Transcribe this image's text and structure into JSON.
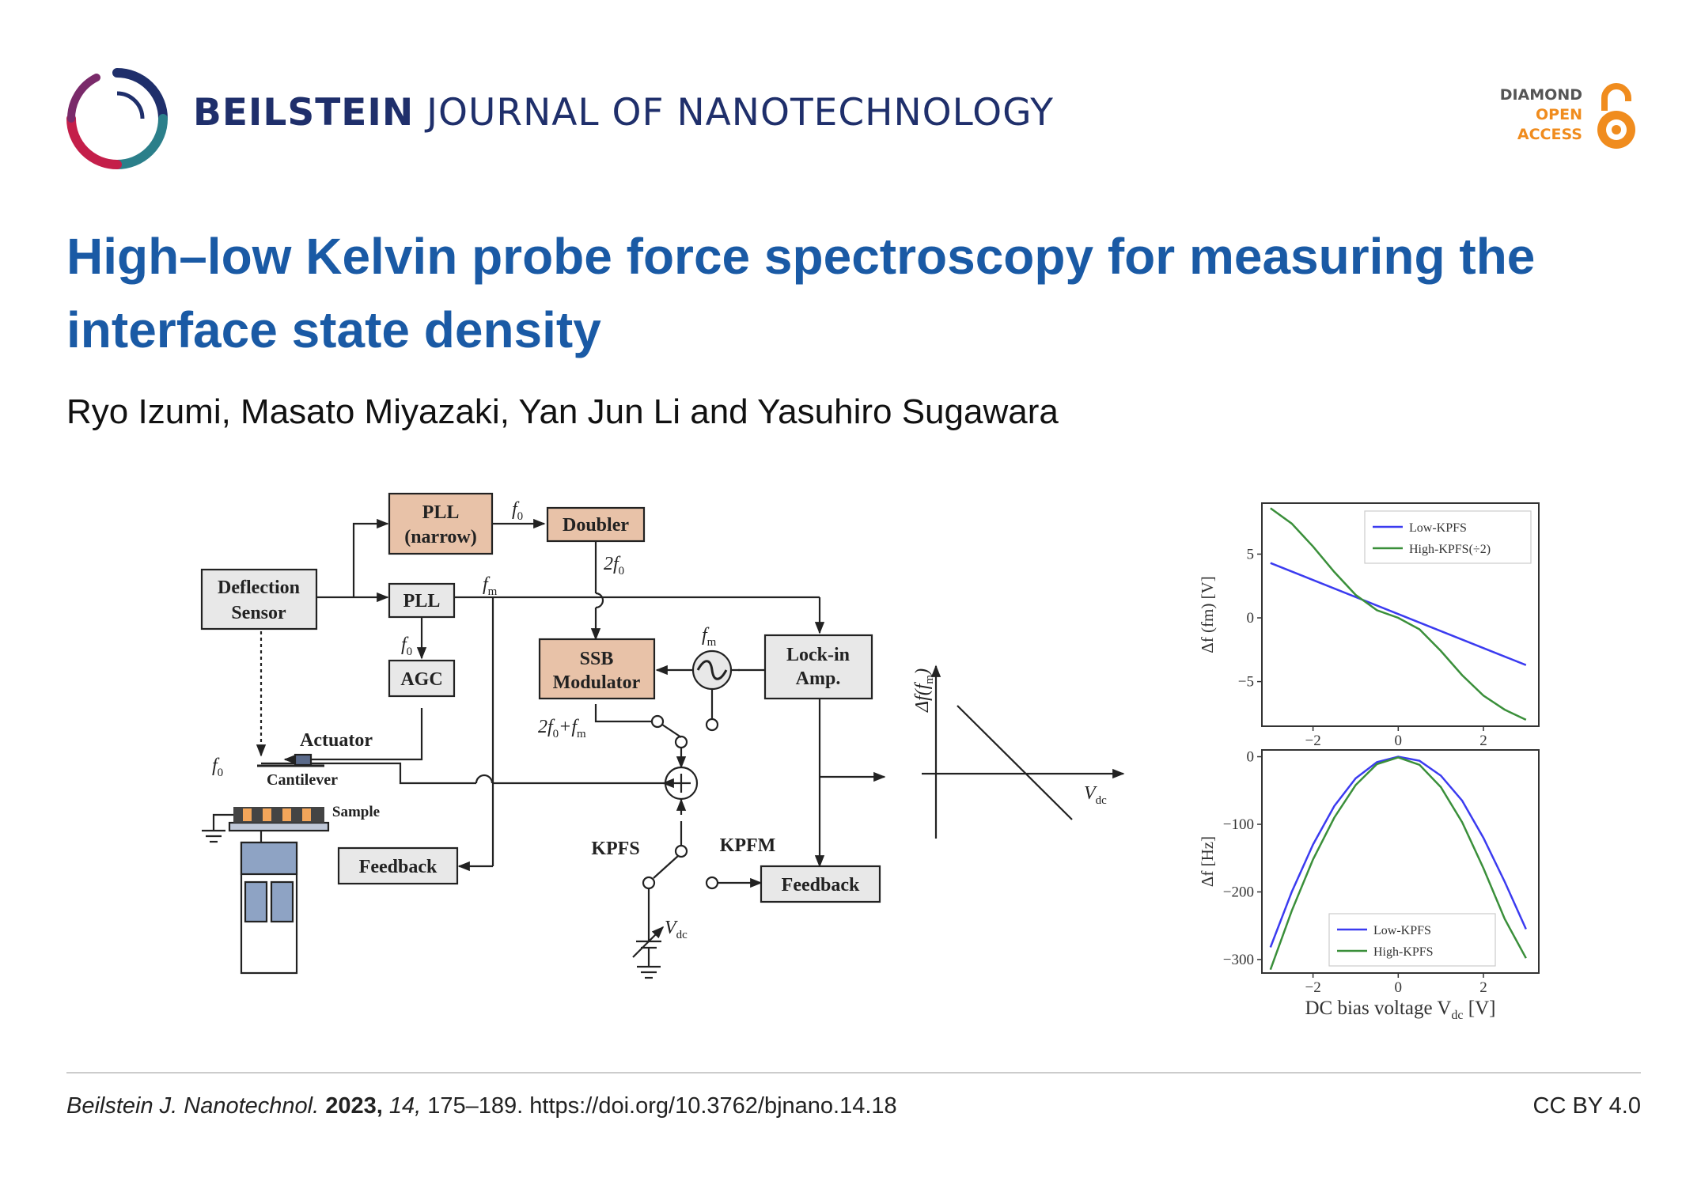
{
  "header": {
    "journal_bold": "BEILSTEIN",
    "journal_rest": "JOURNAL OF NANOTECHNOLOGY",
    "oa_line1": "DIAMOND",
    "oa_line2": "OPEN",
    "oa_line3": "ACCESS"
  },
  "article": {
    "title": "High–low Kelvin probe force spectroscopy for measuring the interface state density",
    "authors": "Ryo Izumi, Masato Miyazaki, Yan Jun Li and Yasuhiro Sugawara"
  },
  "diagram": {
    "pll_narrow_1": "PLL",
    "pll_narrow_2": "(narrow)",
    "doubler": "Doubler",
    "deflection_1": "Deflection",
    "deflection_2": "Sensor",
    "pll": "PLL",
    "agc": "AGC",
    "ssb_1": "SSB",
    "ssb_2": "Modulator",
    "lockin_1": "Lock-in",
    "lockin_2": "Amp.",
    "feedback_left": "Feedback",
    "feedback_right": "Feedback",
    "actuator": "Actuator",
    "cantilever": "Cantilever",
    "sample": "Sample",
    "kpfs": "KPFS",
    "kpfm": "KPFM",
    "f0_a": "f",
    "f0_sub": "0",
    "fm": "f",
    "fm_sub": "m",
    "two_f0": "2f",
    "two_f0_plus_fm": "2f",
    "vdc": "V",
    "vdc_sub": "dc",
    "delta_f_axis": "Δf(f",
    "delta_f_axis_sub": "m",
    "delta_f_axis_close": ")"
  },
  "chart_data": [
    {
      "type": "line",
      "ylabel": "Δf (fm) [V]",
      "xlim": [
        -3.2,
        3.3
      ],
      "ylim": [
        -8.5,
        9
      ],
      "yticks": [
        5,
        0,
        -5
      ],
      "xticks": [
        -2,
        0,
        2
      ],
      "legend_position": "top-right",
      "series": [
        {
          "name": "Low-KPFS",
          "color": "#3b3bf0",
          "x": [
            -3.0,
            3.0
          ],
          "y": [
            4.3,
            -3.7
          ]
        },
        {
          "name": "High-KPFS(÷2)",
          "color": "#3a8f3a",
          "x": [
            -3.0,
            -2.5,
            -2.0,
            -1.5,
            -1.0,
            -0.5,
            0.0,
            0.5,
            1.0,
            1.5,
            2.0,
            2.5,
            3.0
          ],
          "y": [
            8.6,
            7.4,
            5.6,
            3.6,
            1.8,
            0.6,
            0.0,
            -0.9,
            -2.6,
            -4.5,
            -6.1,
            -7.2,
            -8.0
          ]
        }
      ]
    },
    {
      "type": "line",
      "ylabel": "Δf [Hz]",
      "xlabel": "DC bias voltage V",
      "xlabel_sub": "dc",
      "xlabel_unit": "[V]",
      "xlim": [
        -3.2,
        3.3
      ],
      "ylim": [
        -320,
        10
      ],
      "yticks": [
        0,
        -100,
        -200,
        -300
      ],
      "xticks": [
        -2,
        0,
        2
      ],
      "legend_position": "bottom-center",
      "series": [
        {
          "name": "Low-KPFS",
          "color": "#3b3bf0",
          "x": [
            -3.0,
            -2.5,
            -2.0,
            -1.5,
            -1.0,
            -0.5,
            0.0,
            0.5,
            1.0,
            1.5,
            2.0,
            2.5,
            3.0
          ],
          "y": [
            -282,
            -200,
            -130,
            -73,
            -32,
            -8,
            0,
            -6,
            -28,
            -65,
            -120,
            -185,
            -255
          ]
        },
        {
          "name": "High-KPFS",
          "color": "#3a8f3a",
          "x": [
            -3.0,
            -2.5,
            -2.0,
            -1.5,
            -1.0,
            -0.5,
            0.0,
            0.5,
            1.0,
            1.5,
            2.0,
            2.5,
            3.0
          ],
          "y": [
            -315,
            -228,
            -152,
            -90,
            -42,
            -11,
            -1,
            -12,
            -45,
            -97,
            -165,
            -240,
            -298
          ]
        }
      ]
    }
  ],
  "footer": {
    "journal_abbrev": "Beilstein J. Nanotechnol.",
    "year": "2023,",
    "volume": "14,",
    "pages_doi": "175–189. https://doi.org/10.3762/bjnano.14.18",
    "license": "CC BY 4.0"
  }
}
